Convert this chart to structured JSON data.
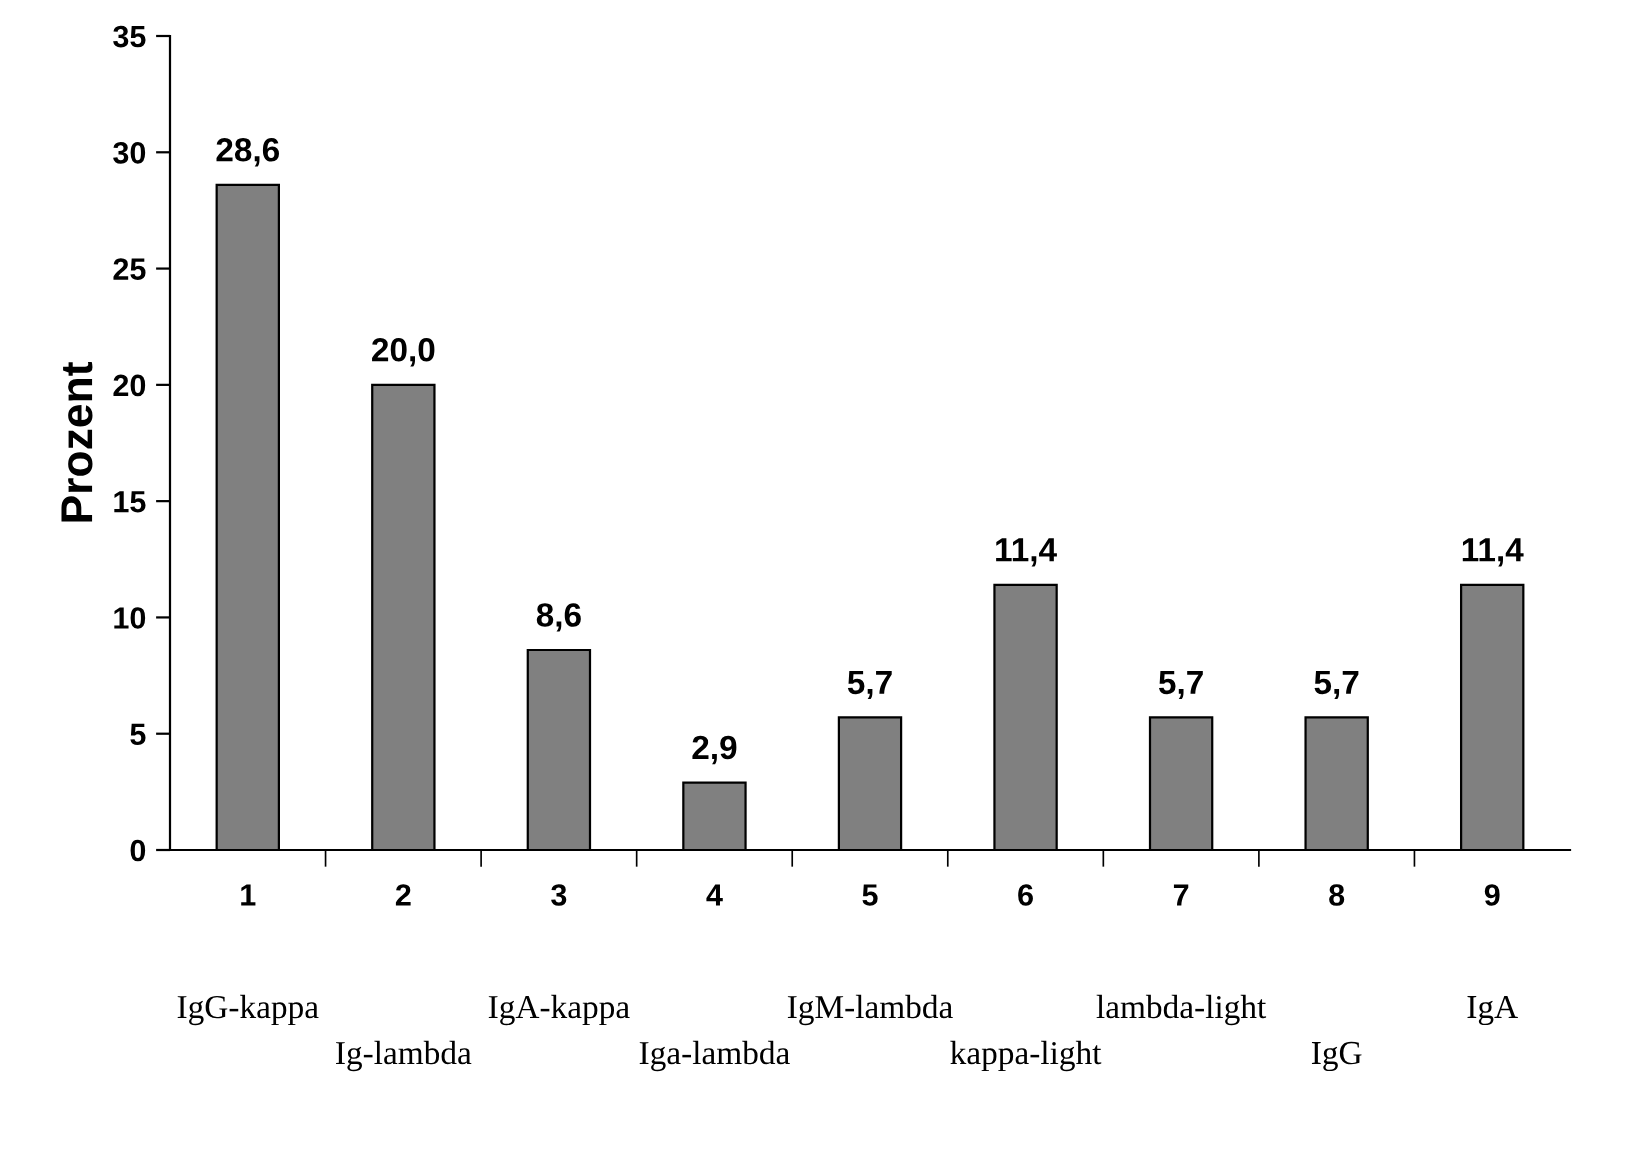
{
  "chart_data": {
    "type": "bar",
    "ylabel": "Prozent",
    "categories": [
      "1",
      "2",
      "3",
      "4",
      "5",
      "6",
      "7",
      "8",
      "9"
    ],
    "values": [
      28.6,
      20.0,
      8.6,
      2.9,
      5.7,
      11.4,
      5.7,
      5.7,
      11.4
    ],
    "value_labels": [
      "28,6",
      "20,0",
      "8,6",
      "2,9",
      "5,7",
      "11,4",
      "5,7",
      "5,7",
      "11,4"
    ],
    "color": "#808080",
    "ylim": [
      0,
      35
    ],
    "yticks": [
      0,
      5,
      10,
      15,
      20,
      25,
      30,
      35
    ],
    "grid": false,
    "legend": false,
    "annotations": [
      "IgG-kappa",
      "Ig-lambda",
      "IgA-kappa",
      "Iga-lambda",
      "IgM-lambda",
      "kappa-light",
      "lambda-light",
      "IgG",
      "IgA"
    ]
  }
}
